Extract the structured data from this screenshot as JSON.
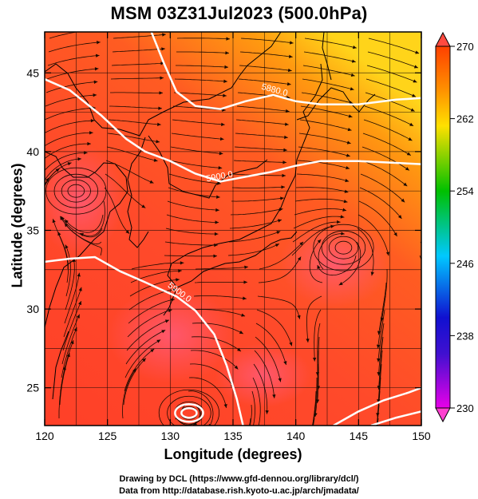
{
  "title": "MSM 03Z31Jul2023 (500.0hPa)",
  "footer": {
    "line1": "Drawing by DCL (https://www.gfd-dennou.org/library/dcl/)",
    "line2": "Data from http://database.rish.kyoto-u.ac.jp/arch/jmadata/"
  },
  "chart_data": {
    "type": "heatmap",
    "xlabel": "Longitude (degrees)",
    "ylabel": "Latitude  (degrees)",
    "xlim": [
      120,
      150
    ],
    "ylim": [
      22.6,
      47.6
    ],
    "xticks": [
      120,
      125,
      130,
      135,
      140,
      145,
      150
    ],
    "yticks": [
      25,
      30,
      35,
      40,
      45
    ],
    "grid_lon": [
      122.5,
      125,
      127.5,
      130,
      132.5,
      135,
      137.5,
      140,
      142.5,
      145,
      147.5
    ],
    "grid_lat": [
      25,
      27.5,
      30,
      32.5,
      35,
      37.5,
      40,
      42.5,
      45
    ],
    "colorbar": {
      "min": 230,
      "max": 270,
      "ticks": [
        230,
        238,
        246,
        254,
        262,
        270
      ],
      "colors": [
        "#e800e8",
        "#1010d0",
        "#00c8ff",
        "#00c000",
        "#ffe000",
        "#ff5000"
      ]
    },
    "contours": [
      {
        "label": "5880.0",
        "points": [
          [
            128.5,
            47.6
          ],
          [
            129.5,
            45.6
          ],
          [
            130.5,
            43.8
          ],
          [
            132,
            42.9
          ],
          [
            134,
            42.7
          ],
          [
            136,
            43.2
          ],
          [
            138.2,
            43.6
          ],
          [
            140,
            43.2
          ],
          [
            142,
            43.0
          ],
          [
            145,
            43.0
          ],
          [
            148,
            43.3
          ],
          [
            150,
            43.4
          ]
        ]
      },
      {
        "label": "5900.0",
        "points": [
          [
            120,
            44.6
          ],
          [
            122,
            43.9
          ],
          [
            124.5,
            42.3
          ],
          [
            126.5,
            40.8
          ],
          [
            128,
            40.0
          ],
          [
            130,
            39.4
          ],
          [
            132,
            38.6
          ],
          [
            134,
            38.1
          ],
          [
            136,
            38.4
          ],
          [
            138,
            38.7
          ],
          [
            140,
            39.1
          ],
          [
            142,
            39.4
          ],
          [
            145,
            39.4
          ],
          [
            150,
            39.2
          ]
        ]
      },
      {
        "label": "5900.0",
        "points": [
          [
            120,
            33.0
          ],
          [
            122,
            33.2
          ],
          [
            124,
            33.3
          ],
          [
            126,
            32.4
          ],
          [
            128,
            31.7
          ],
          [
            130.5,
            30.8
          ],
          [
            132,
            29.9
          ],
          [
            133.5,
            28.4
          ],
          [
            134.5,
            26.4
          ],
          [
            135.3,
            24.3
          ],
          [
            135.8,
            22.6
          ]
        ]
      },
      {
        "label": "",
        "points": [
          [
            143,
            22.6
          ],
          [
            145,
            23.5
          ],
          [
            147,
            24.2
          ],
          [
            149,
            24.7
          ],
          [
            150,
            25.0
          ]
        ]
      },
      {
        "label": "",
        "points": [
          [
            146,
            22.6
          ],
          [
            148,
            23.1
          ],
          [
            150,
            23.5
          ]
        ]
      }
    ],
    "vortices": [
      [
        131.5,
        23.4
      ],
      [
        143.8,
        33.9
      ],
      [
        122.5,
        37.5
      ]
    ]
  }
}
